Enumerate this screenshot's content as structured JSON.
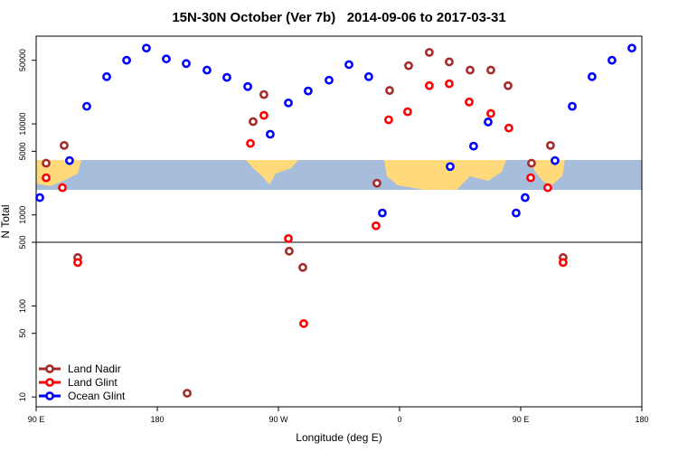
{
  "chart_data": {
    "type": "scatter",
    "title": "15N-30N October (Ver 7b)   2014-09-06 to 2017-03-31",
    "x_label": "Longitude (deg E)",
    "y_label": "N Total",
    "xlim": [
      90,
      540
    ],
    "ylim": [
      7.8,
      92000
    ],
    "log_y": true,
    "xticks": [
      {
        "value": 90,
        "label": "90 E"
      },
      180,
      {
        "value": 270,
        "label": "90 W"
      },
      {
        "value": 360,
        "label": "0"
      },
      {
        "value": 450,
        "label": "90 E"
      },
      {
        "value": 540,
        "label": "180"
      }
    ],
    "yticks": [
      10,
      50,
      100,
      500,
      1000,
      5000,
      10000,
      50000
    ],
    "hline": 500,
    "legend": "lower left",
    "series": [
      {
        "name": "Land Nadir",
        "color": "#a52a2a",
        "x": [
          97.4,
          110.8,
          120.9,
          202.2,
          251.2,
          259.2,
          278,
          288.1,
          343.2,
          352.6,
          366.7,
          382.1,
          396.9,
          412.4,
          427.8,
          440.6,
          458,
          472.1,
          481.5
        ],
        "values": [
          3700,
          5800,
          340,
          11,
          10600,
          21000,
          400,
          265,
          2230,
          23300,
          43600,
          61000,
          48000,
          39000,
          39000,
          26300,
          3700,
          5800,
          340
        ]
      },
      {
        "name": "Land Glint",
        "color": "#ff0000",
        "x": [
          97.4,
          109.5,
          120.9,
          249.2,
          259.2,
          277.4,
          288.8,
          342.5,
          351.9,
          366,
          382.1,
          396.9,
          411.7,
          427.8,
          441.2,
          457.4,
          470.1,
          481.5
        ],
        "values": [
          2560,
          1990,
          300,
          6100,
          12400,
          550,
          64,
          760,
          11100,
          13600,
          26300,
          27600,
          17400,
          13000,
          9000,
          2560,
          1990,
          300
        ]
      },
      {
        "name": "Ocean Glint",
        "color": "#0000ff",
        "x": [
          92.7,
          114.8,
          127.6,
          142.4,
          157.2,
          171.9,
          186.7,
          201.5,
          216.9,
          231.7,
          247.2,
          263.9,
          277.4,
          292.1,
          307.6,
          322.4,
          337.1,
          347.2,
          397.6,
          415,
          425.8,
          446.6,
          453.3,
          475.5,
          488.3,
          503,
          517.8,
          532.6
        ],
        "values": [
          1550,
          3950,
          15600,
          33000,
          50000,
          68000,
          51700,
          46000,
          39000,
          32400,
          25700,
          7700,
          17000,
          23000,
          30200,
          44800,
          33000,
          1050,
          3400,
          5700,
          10500,
          1050,
          1550,
          3950,
          15600,
          33000,
          50000,
          68000
        ]
      }
    ]
  }
}
